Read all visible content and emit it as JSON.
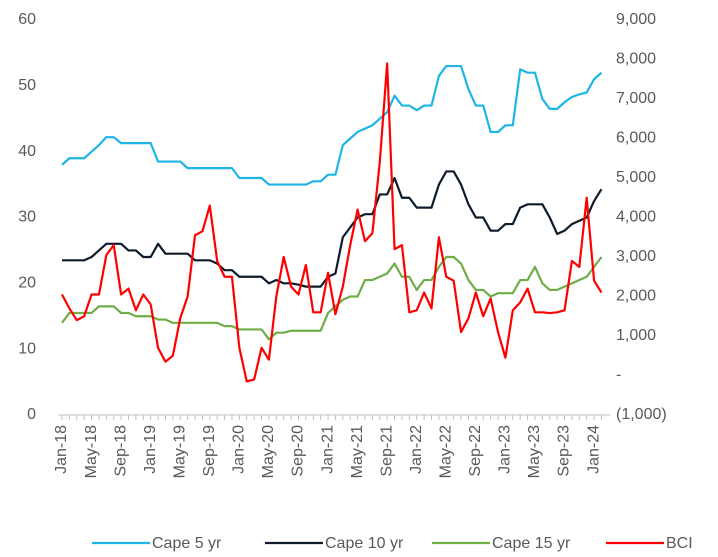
{
  "chart_data": {
    "type": "line",
    "categories": [
      "Jan-18",
      null,
      null,
      null,
      "May-18",
      null,
      null,
      null,
      "Sep-18",
      null,
      null,
      null,
      "Jan-19",
      null,
      null,
      null,
      "May-19",
      null,
      null,
      null,
      "Sep-19",
      null,
      null,
      null,
      "Jan-20",
      null,
      null,
      null,
      "May-20",
      null,
      null,
      null,
      "Sep-20",
      null,
      null,
      null,
      "Jan-21",
      null,
      null,
      null,
      "May-21",
      null,
      null,
      null,
      "Sep-21",
      null,
      null,
      null,
      "Jan-22",
      null,
      null,
      null,
      "May-22",
      null,
      null,
      null,
      "Sep-22",
      null,
      null,
      null,
      "Jan-23",
      null,
      null,
      null,
      "May-23",
      null,
      null,
      null,
      "Sep-23",
      null,
      null,
      null,
      "Jan-24",
      null
    ],
    "series": [
      {
        "name": "Cape 5 yr",
        "color": "#1fb4e6",
        "values": [
          38,
          39,
          39,
          39,
          40,
          41,
          42.2,
          42.2,
          41.3,
          41.3,
          41.3,
          41.3,
          41.3,
          38.5,
          38.5,
          38.5,
          38.5,
          37.5,
          37.5,
          37.5,
          37.5,
          37.5,
          37.5,
          37.5,
          36,
          36,
          36,
          36,
          35,
          35,
          35,
          35,
          35,
          35,
          35.5,
          35.5,
          36.5,
          36.5,
          41,
          42,
          43,
          43.5,
          44,
          45,
          46,
          48.5,
          47,
          47,
          46.3,
          47,
          47,
          51.5,
          53,
          53,
          53,
          49.5,
          47,
          47,
          43,
          43,
          44,
          44,
          52.5,
          52,
          52,
          48,
          46.5,
          46.5,
          47.5,
          48.3,
          48.7,
          49,
          51,
          52
        ]
      },
      {
        "name": "Cape 10 yr",
        "color": "#0d1b2a",
        "values": [
          23.5,
          23.5,
          23.5,
          23.5,
          24,
          25,
          26,
          26,
          26,
          25,
          25,
          24,
          24,
          26,
          24.5,
          24.5,
          24.5,
          24.5,
          23.5,
          23.5,
          23.5,
          23,
          22,
          22,
          21,
          21,
          21,
          21,
          20,
          20.5,
          20,
          20,
          19.8,
          19.5,
          19.5,
          19.5,
          21,
          21.5,
          27,
          28.5,
          30,
          30.5,
          30.5,
          33.5,
          33.5,
          36,
          33,
          33,
          31.5,
          31.5,
          31.5,
          35,
          37,
          37,
          35,
          32,
          30,
          30,
          28,
          28,
          29,
          29,
          31.5,
          32,
          32,
          32,
          30,
          27.5,
          28,
          29,
          29.5,
          30,
          32.5,
          34.3
        ]
      },
      {
        "name": "Cape 15 yr",
        "color": "#70ad47",
        "values": [
          14,
          15.5,
          15.5,
          15.5,
          15.5,
          16.5,
          16.5,
          16.5,
          15.5,
          15.5,
          15,
          15,
          15,
          14.5,
          14.5,
          14,
          14,
          14,
          14,
          14,
          14,
          14,
          13.5,
          13.5,
          13,
          13,
          13,
          13,
          11.5,
          12.5,
          12.5,
          12.8,
          12.8,
          12.8,
          12.8,
          12.8,
          15.5,
          16.5,
          17.5,
          18,
          18,
          20.5,
          20.5,
          21,
          21.5,
          23,
          21,
          21,
          19,
          20.5,
          20.5,
          22.5,
          24,
          24,
          23,
          20.5,
          19,
          19,
          18,
          18.5,
          18.5,
          18.5,
          20.5,
          20.5,
          22.5,
          20,
          19,
          19,
          19.5,
          20,
          20.5,
          21,
          22.5,
          24
        ]
      },
      {
        "name": "BCI",
        "color": "#ff0000",
        "axis": "y2",
        "values": [
          2050,
          1700,
          1400,
          1500,
          2050,
          2050,
          3050,
          3300,
          2050,
          2200,
          1650,
          2050,
          1800,
          700,
          350,
          500,
          1450,
          2000,
          3550,
          3650,
          4300,
          2900,
          2500,
          2500,
          700,
          -150,
          -100,
          700,
          400,
          2000,
          3000,
          2250,
          2050,
          2800,
          1600,
          1600,
          2600,
          1550,
          2250,
          3300,
          4200,
          3400,
          3600,
          5400,
          7900,
          3200,
          3300,
          1600,
          1650,
          2100,
          1700,
          3500,
          2500,
          2400,
          1100,
          1450,
          2100,
          1500,
          1950,
          1100,
          450,
          1650,
          1850,
          2200,
          1600,
          1600,
          1580,
          1600,
          1650,
          2900,
          2750,
          4500,
          2400,
          2100
        ]
      }
    ],
    "ylim": [
      0,
      60
    ],
    "yticks": [
      0,
      10,
      20,
      30,
      40,
      50,
      60
    ],
    "y2lim": [
      -1000,
      9000
    ],
    "y2ticks": [
      {
        "value": -1000,
        "label": "(1,000)"
      },
      {
        "value": 0,
        "label": "-"
      },
      {
        "value": 1000,
        "label": "1,000"
      },
      {
        "value": 2000,
        "label": "2,000"
      },
      {
        "value": 3000,
        "label": "3,000"
      },
      {
        "value": 4000,
        "label": "4,000"
      },
      {
        "value": 5000,
        "label": "5,000"
      },
      {
        "value": 6000,
        "label": "6,000"
      },
      {
        "value": 7000,
        "label": "7,000"
      },
      {
        "value": 8000,
        "label": "8,000"
      },
      {
        "value": 9000,
        "label": "9,000"
      }
    ],
    "grid": false,
    "legend": "bottom"
  }
}
